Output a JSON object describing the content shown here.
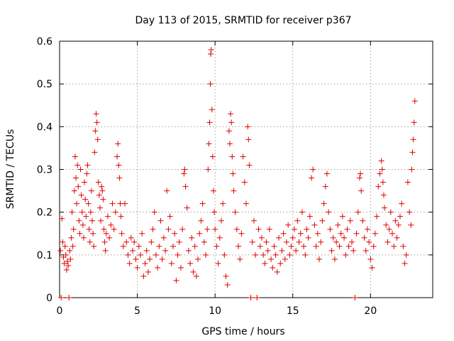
{
  "chart_data": {
    "type": "scatter",
    "title": "Day 113 of 2015, SRMTID for receiver p367",
    "xlabel": "GPS time / hours",
    "ylabel": "SRMTID / TECUs",
    "xlim": [
      0,
      24
    ],
    "ylim": [
      0,
      0.6
    ],
    "x_ticks": [
      0,
      5,
      10,
      15,
      20
    ],
    "x_tick_labels": [
      "0",
      "5",
      "10",
      "15",
      "20"
    ],
    "y_ticks": [
      0,
      0.1,
      0.2,
      0.3,
      0.4,
      0.5,
      0.6
    ],
    "y_tick_labels": [
      "0",
      "0.1",
      "0.2",
      "0.3",
      "0.4",
      "0.5",
      "0.6"
    ],
    "grid": true,
    "marker": "plus",
    "color": "#e00000",
    "series": [
      {
        "name": "SRMTID",
        "points": [
          [
            0.05,
            0.11
          ],
          [
            0.1,
            0.0
          ],
          [
            0.15,
            0.185
          ],
          [
            0.2,
            0.13
          ],
          [
            0.25,
            0.095
          ],
          [
            0.3,
            0.08
          ],
          [
            0.35,
            0.12
          ],
          [
            0.4,
            0.1
          ],
          [
            0.45,
            0.065
          ],
          [
            0.5,
            0.085
          ],
          [
            0.55,
            0.075
          ],
          [
            0.6,
            0.0
          ],
          [
            0.65,
            0.11
          ],
          [
            0.7,
            0.09
          ],
          [
            0.75,
            0.14
          ],
          [
            0.8,
            0.2
          ],
          [
            0.85,
            0.12
          ],
          [
            0.9,
            0.16
          ],
          [
            0.95,
            0.25
          ],
          [
            1.0,
            0.33
          ],
          [
            1.05,
            0.28
          ],
          [
            1.1,
            0.22
          ],
          [
            1.15,
            0.31
          ],
          [
            1.2,
            0.26
          ],
          [
            1.25,
            0.18
          ],
          [
            1.3,
            0.15
          ],
          [
            1.35,
            0.3
          ],
          [
            1.4,
            0.24
          ],
          [
            1.45,
            0.2
          ],
          [
            1.5,
            0.17
          ],
          [
            1.55,
            0.14
          ],
          [
            1.6,
            0.27
          ],
          [
            1.65,
            0.23
          ],
          [
            1.7,
            0.19
          ],
          [
            1.75,
            0.29
          ],
          [
            1.8,
            0.31
          ],
          [
            1.85,
            0.22
          ],
          [
            1.9,
            0.16
          ],
          [
            1.95,
            0.13
          ],
          [
            2.0,
            0.2
          ],
          [
            2.05,
            0.25
          ],
          [
            2.1,
            0.18
          ],
          [
            2.15,
            0.15
          ],
          [
            2.2,
            0.12
          ],
          [
            2.25,
            0.34
          ],
          [
            2.3,
            0.39
          ],
          [
            2.35,
            0.43
          ],
          [
            2.4,
            0.41
          ],
          [
            2.45,
            0.37
          ],
          [
            2.5,
            0.27
          ],
          [
            2.55,
            0.24
          ],
          [
            2.6,
            0.21
          ],
          [
            2.65,
            0.18
          ],
          [
            2.7,
            0.26
          ],
          [
            2.75,
            0.25
          ],
          [
            2.8,
            0.23
          ],
          [
            2.85,
            0.16
          ],
          [
            2.9,
            0.13
          ],
          [
            2.95,
            0.11
          ],
          [
            3.0,
            0.15
          ],
          [
            3.1,
            0.19
          ],
          [
            3.2,
            0.14
          ],
          [
            3.3,
            0.17
          ],
          [
            3.4,
            0.22
          ],
          [
            3.5,
            0.16
          ],
          [
            3.6,
            0.2
          ],
          [
            3.7,
            0.33
          ],
          [
            3.75,
            0.36
          ],
          [
            3.8,
            0.31
          ],
          [
            3.85,
            0.28
          ],
          [
            3.9,
            0.22
          ],
          [
            3.95,
            0.19
          ],
          [
            4.0,
            0.15
          ],
          [
            4.1,
            0.12
          ],
          [
            4.2,
            0.22
          ],
          [
            4.3,
            0.13
          ],
          [
            4.4,
            0.1
          ],
          [
            4.5,
            0.08
          ],
          [
            4.6,
            0.14
          ],
          [
            4.7,
            0.11
          ],
          [
            4.8,
            0.13
          ],
          [
            4.9,
            0.09
          ],
          [
            5.0,
            0.07
          ],
          [
            5.1,
            0.12
          ],
          [
            5.2,
            0.1
          ],
          [
            5.3,
            0.15
          ],
          [
            5.4,
            0.05
          ],
          [
            5.5,
            0.08
          ],
          [
            5.6,
            0.11
          ],
          [
            5.7,
            0.06
          ],
          [
            5.8,
            0.09
          ],
          [
            5.9,
            0.13
          ],
          [
            6.0,
            0.16
          ],
          [
            6.1,
            0.2
          ],
          [
            6.2,
            0.1
          ],
          [
            6.3,
            0.07
          ],
          [
            6.4,
            0.12
          ],
          [
            6.5,
            0.18
          ],
          [
            6.6,
            0.09
          ],
          [
            6.7,
            0.14
          ],
          [
            6.8,
            0.11
          ],
          [
            6.9,
            0.25
          ],
          [
            7.0,
            0.16
          ],
          [
            7.1,
            0.19
          ],
          [
            7.2,
            0.08
          ],
          [
            7.3,
            0.12
          ],
          [
            7.4,
            0.15
          ],
          [
            7.5,
            0.04
          ],
          [
            7.6,
            0.1
          ],
          [
            7.7,
            0.13
          ],
          [
            7.8,
            0.07
          ],
          [
            7.9,
            0.16
          ],
          [
            8.0,
            0.29
          ],
          [
            8.05,
            0.3
          ],
          [
            8.1,
            0.26
          ],
          [
            8.2,
            0.21
          ],
          [
            8.3,
            0.11
          ],
          [
            8.4,
            0.08
          ],
          [
            8.5,
            0.14
          ],
          [
            8.6,
            0.06
          ],
          [
            8.7,
            0.12
          ],
          [
            8.8,
            0.05
          ],
          [
            8.9,
            0.09
          ],
          [
            9.0,
            0.15
          ],
          [
            9.1,
            0.18
          ],
          [
            9.2,
            0.22
          ],
          [
            9.3,
            0.13
          ],
          [
            9.4,
            0.1
          ],
          [
            9.5,
            0.16
          ],
          [
            9.55,
            0.3
          ],
          [
            9.6,
            0.36
          ],
          [
            9.65,
            0.41
          ],
          [
            9.7,
            0.5
          ],
          [
            9.72,
            0.57
          ],
          [
            9.75,
            0.58
          ],
          [
            9.8,
            0.44
          ],
          [
            9.85,
            0.33
          ],
          [
            9.9,
            0.25
          ],
          [
            9.95,
            0.2
          ],
          [
            10.0,
            0.16
          ],
          [
            10.1,
            0.12
          ],
          [
            10.2,
            0.08
          ],
          [
            10.3,
            0.14
          ],
          [
            10.4,
            0.18
          ],
          [
            10.5,
            0.22
          ],
          [
            10.6,
            0.1
          ],
          [
            10.7,
            0.05
          ],
          [
            10.8,
            0.03
          ],
          [
            10.9,
            0.39
          ],
          [
            10.95,
            0.36
          ],
          [
            11.0,
            0.43
          ],
          [
            11.05,
            0.41
          ],
          [
            11.1,
            0.33
          ],
          [
            11.15,
            0.29
          ],
          [
            11.2,
            0.25
          ],
          [
            11.3,
            0.2
          ],
          [
            11.4,
            0.16
          ],
          [
            11.5,
            0.12
          ],
          [
            11.6,
            0.09
          ],
          [
            11.7,
            0.15
          ],
          [
            11.8,
            0.33
          ],
          [
            11.9,
            0.27
          ],
          [
            12.0,
            0.22
          ],
          [
            12.1,
            0.4
          ],
          [
            12.15,
            0.37
          ],
          [
            12.2,
            0.31
          ],
          [
            12.3,
            0.0
          ],
          [
            12.4,
            0.13
          ],
          [
            12.5,
            0.18
          ],
          [
            12.6,
            0.1
          ],
          [
            12.7,
            0.0
          ],
          [
            12.8,
            0.16
          ],
          [
            12.9,
            0.12
          ],
          [
            13.0,
            0.14
          ],
          [
            13.1,
            0.1
          ],
          [
            13.2,
            0.08
          ],
          [
            13.3,
            0.13
          ],
          [
            13.4,
            0.11
          ],
          [
            13.5,
            0.16
          ],
          [
            13.6,
            0.09
          ],
          [
            13.7,
            0.07
          ],
          [
            13.8,
            0.12
          ],
          [
            13.9,
            0.1
          ],
          [
            14.0,
            0.06
          ],
          [
            14.1,
            0.14
          ],
          [
            14.2,
            0.08
          ],
          [
            14.3,
            0.11
          ],
          [
            14.4,
            0.15
          ],
          [
            14.5,
            0.09
          ],
          [
            14.6,
            0.13
          ],
          [
            14.7,
            0.17
          ],
          [
            14.8,
            0.1
          ],
          [
            14.9,
            0.12
          ],
          [
            15.0,
            0.14
          ],
          [
            15.1,
            0.16
          ],
          [
            15.2,
            0.11
          ],
          [
            15.3,
            0.18
          ],
          [
            15.4,
            0.13
          ],
          [
            15.5,
            0.15
          ],
          [
            15.6,
            0.2
          ],
          [
            15.7,
            0.12
          ],
          [
            15.8,
            0.1
          ],
          [
            15.9,
            0.16
          ],
          [
            16.0,
            0.14
          ],
          [
            16.1,
            0.19
          ],
          [
            16.2,
            0.28
          ],
          [
            16.3,
            0.3
          ],
          [
            16.4,
            0.17
          ],
          [
            16.5,
            0.12
          ],
          [
            16.6,
            0.15
          ],
          [
            16.7,
            0.09
          ],
          [
            16.8,
            0.13
          ],
          [
            16.9,
            0.18
          ],
          [
            17.0,
            0.22
          ],
          [
            17.1,
            0.26
          ],
          [
            17.2,
            0.29
          ],
          [
            17.3,
            0.2
          ],
          [
            17.4,
            0.16
          ],
          [
            17.5,
            0.11
          ],
          [
            17.6,
            0.14
          ],
          [
            17.7,
            0.09
          ],
          [
            17.8,
            0.13
          ],
          [
            17.9,
            0.17
          ],
          [
            18.0,
            0.12
          ],
          [
            18.1,
            0.15
          ],
          [
            18.2,
            0.19
          ],
          [
            18.3,
            0.14
          ],
          [
            18.4,
            0.1
          ],
          [
            18.5,
            0.16
          ],
          [
            18.6,
            0.12
          ],
          [
            18.7,
            0.18
          ],
          [
            18.8,
            0.13
          ],
          [
            18.9,
            0.11
          ],
          [
            19.0,
            0.0
          ],
          [
            19.1,
            0.15
          ],
          [
            19.2,
            0.2
          ],
          [
            19.3,
            0.28
          ],
          [
            19.35,
            0.29
          ],
          [
            19.4,
            0.25
          ],
          [
            19.5,
            0.18
          ],
          [
            19.6,
            0.14
          ],
          [
            19.7,
            0.11
          ],
          [
            19.8,
            0.16
          ],
          [
            19.9,
            0.13
          ],
          [
            20.0,
            0.09
          ],
          [
            20.1,
            0.07
          ],
          [
            20.2,
            0.12
          ],
          [
            20.3,
            0.15
          ],
          [
            20.4,
            0.19
          ],
          [
            20.5,
            0.26
          ],
          [
            20.6,
            0.29
          ],
          [
            20.7,
            0.32
          ],
          [
            20.75,
            0.3
          ],
          [
            20.8,
            0.27
          ],
          [
            20.85,
            0.24
          ],
          [
            20.9,
            0.21
          ],
          [
            21.0,
            0.17
          ],
          [
            21.1,
            0.13
          ],
          [
            21.2,
            0.16
          ],
          [
            21.3,
            0.2
          ],
          [
            21.4,
            0.15
          ],
          [
            21.5,
            0.12
          ],
          [
            21.6,
            0.18
          ],
          [
            21.7,
            0.14
          ],
          [
            21.8,
            0.17
          ],
          [
            21.9,
            0.19
          ],
          [
            22.0,
            0.22
          ],
          [
            22.1,
            0.12
          ],
          [
            22.2,
            0.08
          ],
          [
            22.3,
            0.1
          ],
          [
            22.4,
            0.27
          ],
          [
            22.5,
            0.2
          ],
          [
            22.6,
            0.17
          ],
          [
            22.65,
            0.3
          ],
          [
            22.7,
            0.34
          ],
          [
            22.75,
            0.37
          ],
          [
            22.8,
            0.41
          ],
          [
            22.85,
            0.46
          ]
        ]
      }
    ]
  }
}
